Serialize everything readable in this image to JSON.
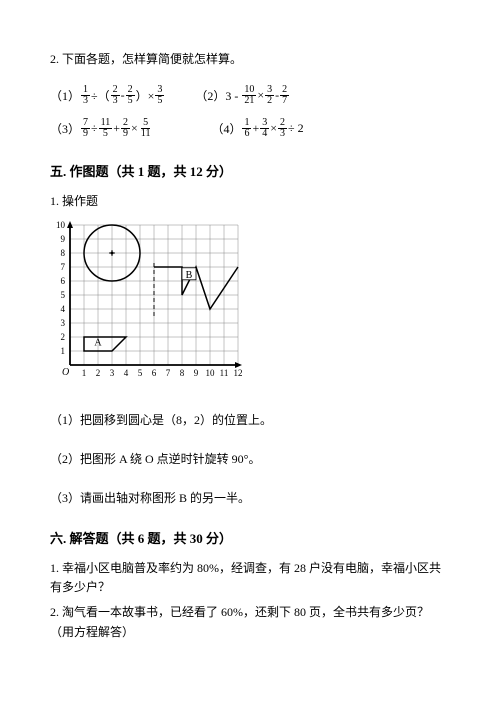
{
  "p2": {
    "intro": "2. 下面各题，怎样算简便就怎样算。",
    "items": {
      "e1_label": "（1）",
      "e1_a_num": "1",
      "e1_a_den": "3",
      "e1_b_num": "2",
      "e1_b_den": "3",
      "e1_c_num": "2",
      "e1_c_den": "5",
      "e1_d_num": "3",
      "e1_d_den": "5",
      "e2_label": "（2）3 -",
      "e2_a_num": "10",
      "e2_a_den": "21",
      "e2_b_num": "3",
      "e2_b_den": "2",
      "e2_c_num": "2",
      "e2_c_den": "7",
      "e3_label": "（3）",
      "e3_a_num": "7",
      "e3_a_den": "9",
      "e3_b_num": "11",
      "e3_b_den": "5",
      "e3_c_num": "2",
      "e3_c_den": "9",
      "e3_d_num": "5",
      "e3_d_den": "11",
      "e4_label": "（4）",
      "e4_a_num": "1",
      "e4_a_den": "6",
      "e4_b_num": "3",
      "e4_b_den": "4",
      "e4_c_num": "2",
      "e4_c_den": "3",
      "e4_tail": " ÷ 2"
    }
  },
  "section5": {
    "title": "五. 作图题（共 1 题，共 12 分）",
    "item1": "1. 操作题",
    "q1": "（1）把圆移到圆心是（8，2）的位置上。",
    "q2": "（2）把图形 A 绕 O 点逆时针旋转 90°。",
    "q3": "（3）请画出轴对称图形 B 的另一半。"
  },
  "figure": {
    "grid": {
      "rows": 10,
      "cols": 12,
      "cell": 14
    },
    "axis_labels_x": [
      "1",
      "2",
      "3",
      "4",
      "5",
      "6",
      "7",
      "8",
      "9",
      "10",
      "11",
      "12"
    ],
    "axis_labels_y": [
      "1",
      "2",
      "3",
      "4",
      "5",
      "6",
      "7",
      "8",
      "9",
      "10"
    ],
    "origin_label": "O",
    "circle": {
      "cx_cell": 3,
      "cy_cell": 8,
      "r_cells": 2
    },
    "labelA": "A",
    "labelB": "B",
    "shapeA_cells": [
      [
        1,
        2
      ],
      [
        4,
        2
      ],
      [
        3,
        1
      ],
      [
        1,
        1
      ]
    ],
    "shapeB_cells": [
      [
        6,
        7
      ],
      [
        8,
        7
      ],
      [
        8,
        5
      ],
      [
        9,
        7
      ],
      [
        10,
        4
      ],
      [
        12,
        7
      ]
    ],
    "colors": {
      "grid": "#888888",
      "axis": "#000000",
      "stroke": "#000000"
    }
  },
  "section6": {
    "title": "六. 解答题（共 6 题，共 30 分）",
    "q1": "1. 幸福小区电脑普及率约为 80%，经调查，有 28 户没有电脑，幸福小区共有多少户？",
    "q2": "2. 淘气看一本故事书，已经看了 60%，还剩下 80 页，全书共有多少页？（用方程解答）"
  }
}
